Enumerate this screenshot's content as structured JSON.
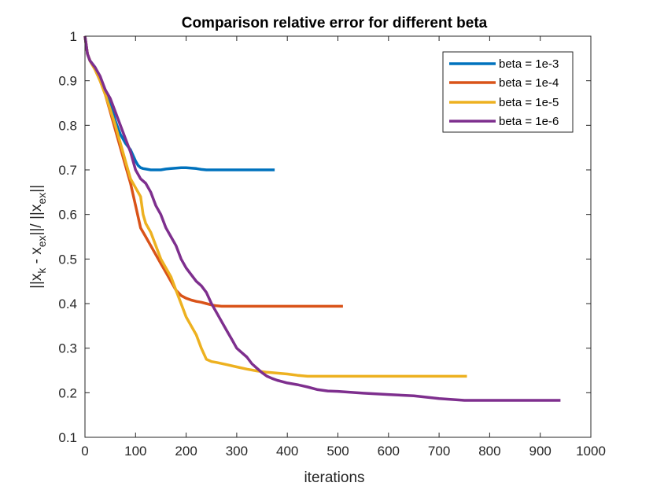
{
  "chart_data": {
    "type": "line",
    "title": "Comparison relative error for different beta",
    "xlabel": "iterations",
    "ylabel_parts": {
      "bar1": "||",
      "x1": "x",
      "sub_k": "k",
      "minus": " - ",
      "x2": "x",
      "sub_ex1": "ex",
      "bar2": "||/ ||",
      "x3": "x",
      "sub_ex2": "ex",
      "bar3": "||"
    },
    "xlim": [
      0,
      1000
    ],
    "ylim": [
      0.1,
      1
    ],
    "xticks": [
      0,
      100,
      200,
      300,
      400,
      500,
      600,
      700,
      800,
      900,
      1000
    ],
    "yticks": [
      0.1,
      0.2,
      0.3,
      0.4,
      0.5,
      0.6,
      0.7,
      0.8,
      0.9,
      1
    ],
    "xtick_labels": [
      "0",
      "100",
      "200",
      "300",
      "400",
      "500",
      "600",
      "700",
      "800",
      "900",
      "1000"
    ],
    "ytick_labels": [
      "0.1",
      "0.2",
      "0.3",
      "0.4",
      "0.5",
      "0.6",
      "0.7",
      "0.8",
      "0.9",
      "1"
    ],
    "grid": false,
    "legend_position": "top-right",
    "series": [
      {
        "name": "beta = 1e-3",
        "color": "#0072bd",
        "x": [
          0,
          5,
          10,
          20,
          30,
          40,
          50,
          60,
          70,
          80,
          90,
          100,
          105,
          110,
          115,
          120,
          130,
          140,
          150,
          160,
          170,
          180,
          190,
          200,
          210,
          220,
          230,
          240,
          260,
          300,
          340,
          375
        ],
        "y": [
          1.0,
          0.96,
          0.945,
          0.93,
          0.905,
          0.88,
          0.85,
          0.81,
          0.78,
          0.76,
          0.745,
          0.72,
          0.71,
          0.705,
          0.703,
          0.702,
          0.7,
          0.7,
          0.7,
          0.702,
          0.703,
          0.704,
          0.705,
          0.705,
          0.704,
          0.703,
          0.701,
          0.7,
          0.7,
          0.7,
          0.7,
          0.7
        ]
      },
      {
        "name": "beta = 1e-4",
        "color": "#d95319",
        "x": [
          0,
          5,
          10,
          20,
          30,
          40,
          50,
          60,
          70,
          80,
          90,
          100,
          110,
          120,
          130,
          140,
          150,
          160,
          170,
          180,
          190,
          200,
          210,
          220,
          230,
          240,
          250,
          260,
          270,
          300,
          350,
          400,
          450,
          510
        ],
        "y": [
          1.0,
          0.96,
          0.945,
          0.925,
          0.9,
          0.87,
          0.83,
          0.79,
          0.75,
          0.71,
          0.67,
          0.62,
          0.57,
          0.55,
          0.53,
          0.51,
          0.49,
          0.47,
          0.45,
          0.43,
          0.418,
          0.412,
          0.408,
          0.405,
          0.403,
          0.4,
          0.397,
          0.395,
          0.394,
          0.394,
          0.394,
          0.394,
          0.394,
          0.394
        ]
      },
      {
        "name": "beta = 1e-5",
        "color": "#edb120",
        "x": [
          0,
          5,
          10,
          20,
          30,
          40,
          50,
          60,
          70,
          80,
          90,
          100,
          110,
          115,
          120,
          130,
          140,
          150,
          160,
          170,
          180,
          190,
          200,
          210,
          220,
          230,
          240,
          250,
          260,
          280,
          300,
          320,
          340,
          360,
          380,
          400,
          420,
          440,
          460,
          500,
          600,
          700,
          755
        ],
        "y": [
          1.0,
          0.96,
          0.945,
          0.925,
          0.9,
          0.87,
          0.835,
          0.8,
          0.76,
          0.72,
          0.68,
          0.66,
          0.64,
          0.6,
          0.58,
          0.56,
          0.53,
          0.5,
          0.48,
          0.46,
          0.43,
          0.4,
          0.37,
          0.35,
          0.33,
          0.3,
          0.275,
          0.27,
          0.268,
          0.263,
          0.258,
          0.253,
          0.249,
          0.246,
          0.244,
          0.242,
          0.239,
          0.237,
          0.237,
          0.237,
          0.237,
          0.237,
          0.237
        ]
      },
      {
        "name": "beta = 1e-6",
        "color": "#7e2f8e",
        "x": [
          0,
          5,
          10,
          20,
          30,
          40,
          50,
          60,
          70,
          80,
          90,
          100,
          110,
          120,
          130,
          140,
          150,
          160,
          170,
          180,
          190,
          200,
          210,
          220,
          230,
          240,
          250,
          260,
          270,
          280,
          290,
          300,
          310,
          320,
          330,
          340,
          350,
          360,
          370,
          380,
          400,
          420,
          440,
          460,
          480,
          500,
          550,
          600,
          650,
          700,
          750,
          800,
          850,
          900,
          940
        ],
        "y": [
          1.0,
          0.96,
          0.945,
          0.93,
          0.91,
          0.88,
          0.86,
          0.83,
          0.8,
          0.77,
          0.74,
          0.7,
          0.68,
          0.67,
          0.65,
          0.62,
          0.6,
          0.57,
          0.55,
          0.53,
          0.5,
          0.48,
          0.465,
          0.45,
          0.44,
          0.425,
          0.4,
          0.38,
          0.36,
          0.34,
          0.32,
          0.3,
          0.29,
          0.28,
          0.265,
          0.255,
          0.245,
          0.237,
          0.232,
          0.228,
          0.222,
          0.218,
          0.213,
          0.207,
          0.204,
          0.203,
          0.199,
          0.196,
          0.193,
          0.187,
          0.183,
          0.183,
          0.183,
          0.183,
          0.183
        ]
      }
    ]
  }
}
